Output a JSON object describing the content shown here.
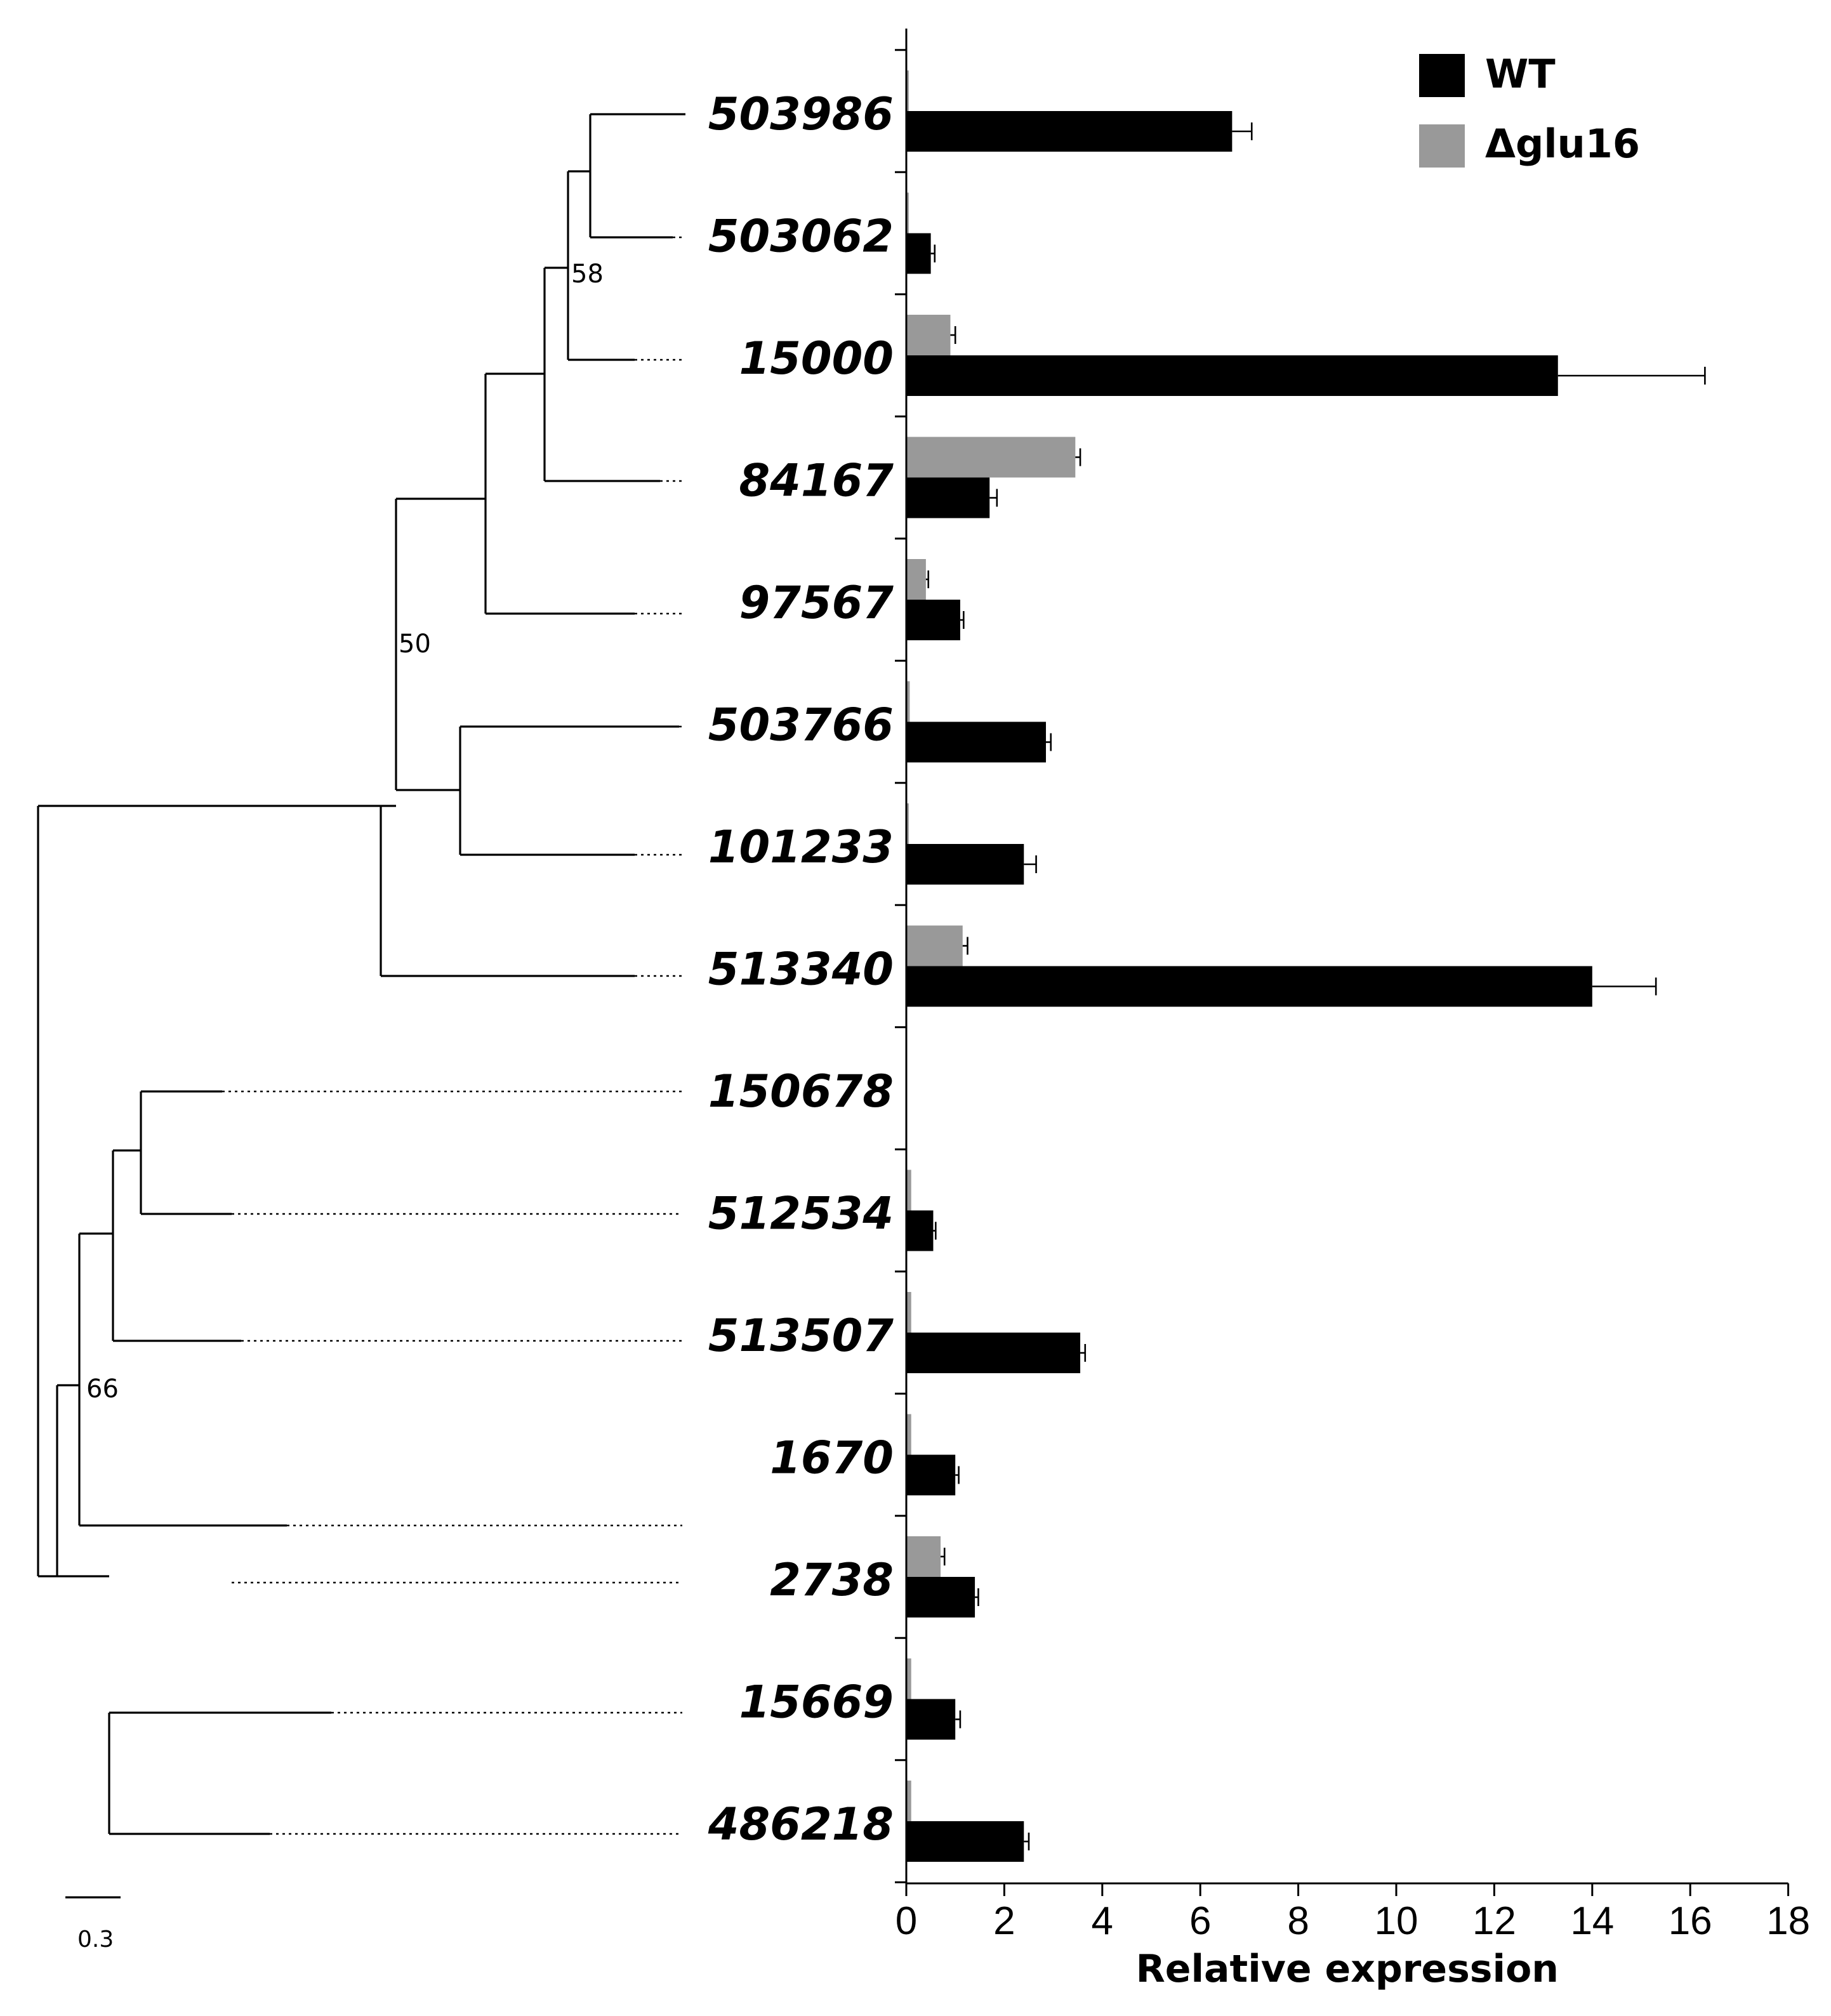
{
  "chart_data": {
    "type": "bar",
    "orientation": "horizontal",
    "title": "",
    "xlabel": "Relative expression",
    "ylabel": "",
    "xlim": [
      0,
      18
    ],
    "xticks": [
      0,
      2,
      4,
      6,
      8,
      10,
      12,
      14,
      16,
      18
    ],
    "categories": [
      "503986",
      "503062",
      "15000",
      "84167",
      "97567",
      "503766",
      "101233",
      "513340",
      "150678",
      "512534",
      "513507",
      "1670",
      "2738",
      "15669",
      "486218"
    ],
    "series": [
      {
        "name": "Δglu16",
        "color": "#999999",
        "values": [
          0.05,
          0.05,
          0.9,
          3.45,
          0.4,
          0.07,
          0.05,
          1.15,
          0,
          0.1,
          0.1,
          0.1,
          0.7,
          0.1,
          0.1
        ],
        "errors": [
          0,
          0,
          0.1,
          0.1,
          0.05,
          0,
          0,
          0.1,
          0,
          0,
          0,
          0,
          0.08,
          0,
          0
        ]
      },
      {
        "name": "WT",
        "color": "#000000",
        "values": [
          6.65,
          0.5,
          13.3,
          1.7,
          1.1,
          2.85,
          2.4,
          14.0,
          0,
          0.55,
          3.55,
          1.0,
          1.4,
          1.0,
          2.4
        ],
        "errors": [
          0.4,
          0.08,
          3.0,
          0.15,
          0.07,
          0.1,
          0.25,
          1.3,
          0,
          0.05,
          0.1,
          0.07,
          0.07,
          0.1,
          0.1
        ]
      }
    ],
    "legend": {
      "position": "top-right",
      "entries": [
        "WT",
        "Δglu16"
      ]
    },
    "grid": false
  },
  "tree": {
    "support_values": [
      "58",
      "50",
      "66"
    ],
    "scale_bar_label": "0.3"
  }
}
